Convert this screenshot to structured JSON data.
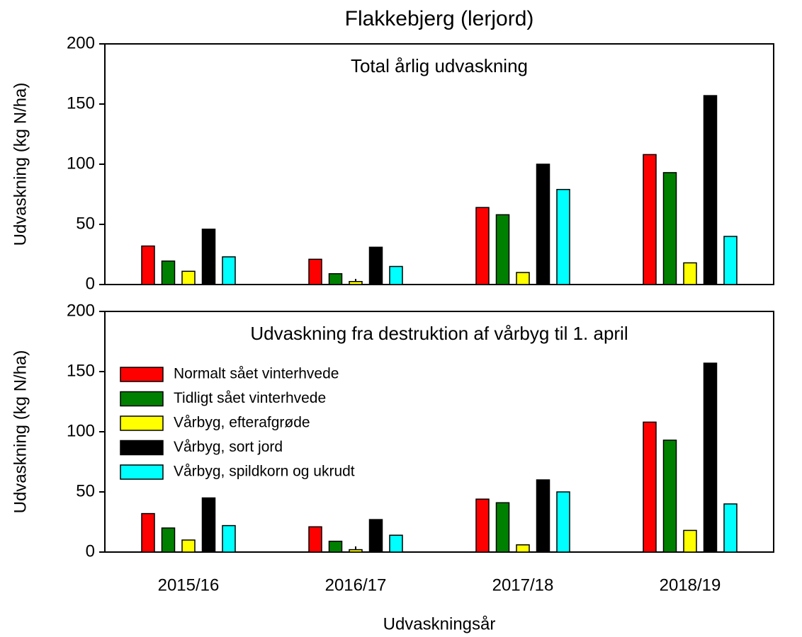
{
  "title": "Flakkebjerg (lerjord)",
  "chart_data": [
    {
      "type": "bar",
      "title": "Total årlig udvaskning",
      "ylabel": "Udvaskning (kg N/ha)",
      "categories": [
        null,
        null,
        null,
        null
      ],
      "series": [
        {
          "color": "#ff0000",
          "values": [
            32,
            21,
            64,
            108
          ]
        },
        {
          "color": "#008000",
          "values": [
            19.5,
            9,
            58,
            93
          ]
        },
        {
          "color": "#ffff00",
          "values": [
            11,
            2.5,
            10,
            18
          ]
        },
        {
          "color": "#000000",
          "values": [
            46,
            31,
            100,
            157
          ]
        },
        {
          "color": "#00ffff",
          "values": [
            23,
            15,
            79,
            40
          ]
        }
      ],
      "ylim": [
        0,
        200
      ],
      "yticks": [
        0,
        50,
        100,
        150,
        200
      ]
    },
    {
      "type": "bar",
      "title": "Udvaskning fra destruktion af vårbyg til 1. april",
      "ylabel": "Udvaskning (kg N/ha)",
      "xlabel": "Udvaskningsår",
      "categories": [
        "2015/16",
        "2016/17",
        "2017/18",
        "2018/19"
      ],
      "series": [
        {
          "name": "Normalt sået vinterhvede",
          "color": "#ff0000",
          "values": [
            32,
            21,
            44,
            108
          ]
        },
        {
          "name": "Tidligt sået vinterhvede",
          "color": "#008000",
          "values": [
            20,
            9,
            41,
            93
          ]
        },
        {
          "name": "Vårbyg, efterafgrøde",
          "color": "#ffff00",
          "values": [
            10,
            2,
            6,
            18
          ]
        },
        {
          "name": "Vårbyg, sort jord",
          "color": "#000000",
          "values": [
            45,
            27,
            60,
            157
          ]
        },
        {
          "name": "Vårbyg, spildkorn og ukrudt",
          "color": "#00ffff",
          "values": [
            22,
            14,
            50,
            40
          ]
        }
      ],
      "ylim": [
        0,
        200
      ],
      "yticks": [
        0,
        50,
        100,
        150,
        200
      ],
      "legend": "upper left"
    }
  ]
}
